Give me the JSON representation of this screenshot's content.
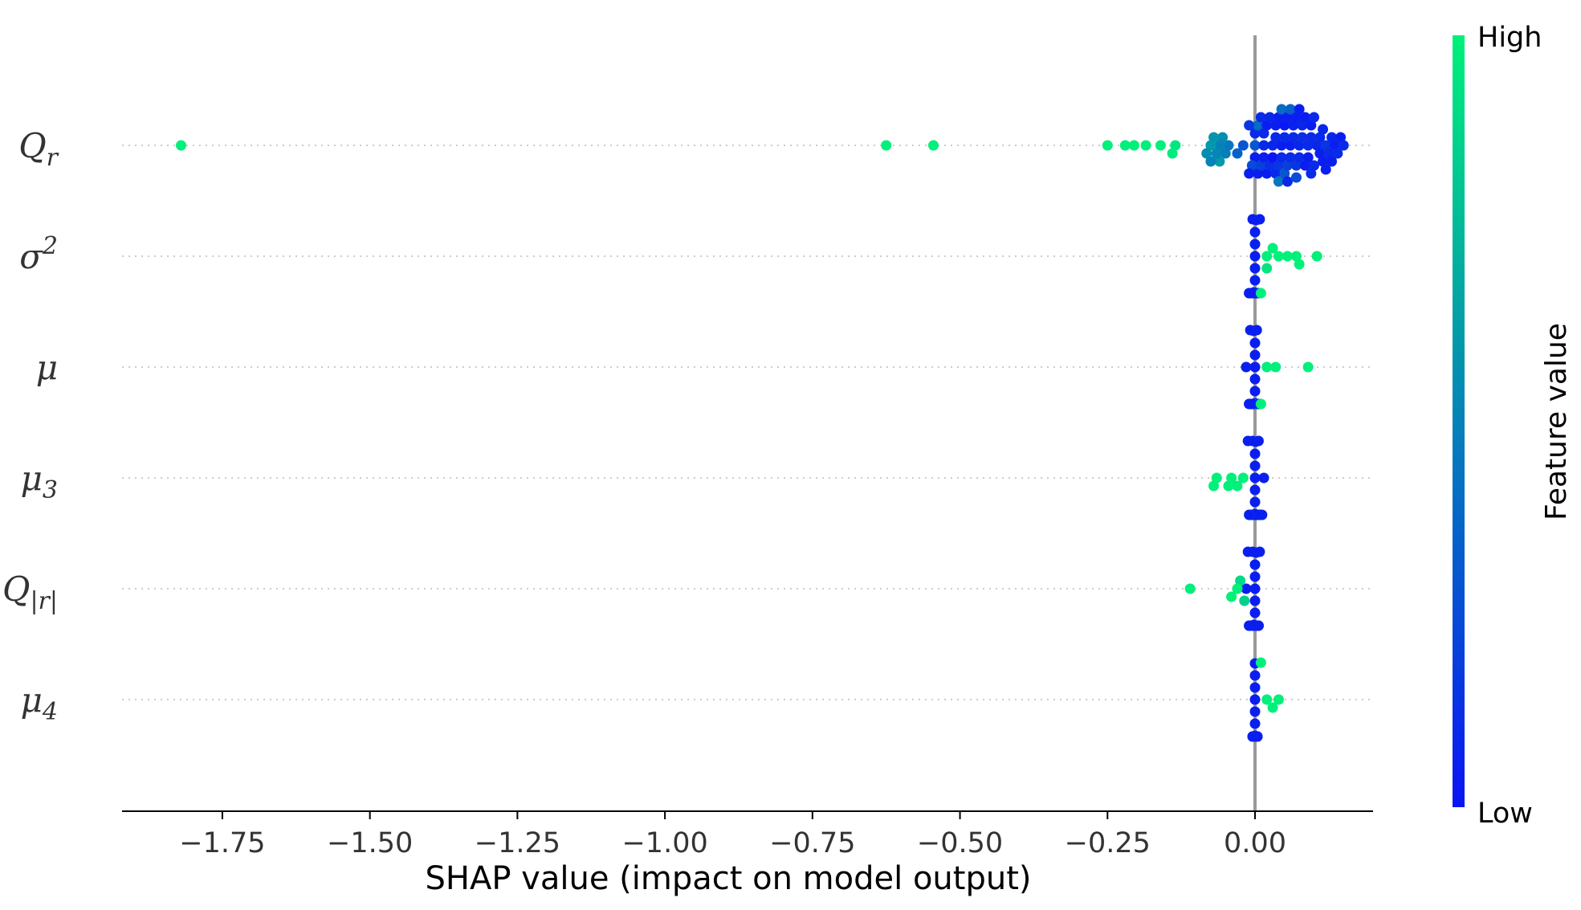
{
  "chart_data": {
    "type": "scatter",
    "subtype": "shap-beeswarm",
    "xlabel": "SHAP value (impact on model output)",
    "xlim": [
      -1.92,
      0.2
    ],
    "xticks": [
      -1.75,
      -1.5,
      -1.25,
      -1.0,
      -0.75,
      -0.5,
      -0.25,
      0.0
    ],
    "xtick_labels": [
      "−1.75",
      "−1.50",
      "−1.25",
      "−1.00",
      "−0.75",
      "−0.50",
      "−0.25",
      "0.00"
    ],
    "zero_line": 0.0,
    "colorbar": {
      "title": "Feature value",
      "high_label": "High",
      "low_label": "Low",
      "low_color": "#0a14f5",
      "high_color": "#00f07a"
    },
    "features": [
      {
        "name": "Q",
        "sub": "r",
        "sup": "",
        "points": [
          [
            -1.82,
            1.0
          ],
          [
            -0.625,
            1.0
          ],
          [
            -0.545,
            1.0
          ],
          [
            -0.25,
            1.0
          ],
          [
            -0.22,
            1.0
          ],
          [
            -0.205,
            1.0
          ],
          [
            -0.185,
            1.0
          ],
          [
            -0.16,
            1.0
          ],
          [
            -0.14,
            0.98
          ],
          [
            -0.135,
            0.96
          ],
          [
            -0.082,
            0.55
          ],
          [
            -0.075,
            0.6
          ],
          [
            -0.07,
            0.58
          ],
          [
            -0.065,
            0.52
          ],
          [
            -0.06,
            0.5
          ],
          [
            -0.055,
            0.55
          ],
          [
            -0.05,
            0.48
          ],
          [
            -0.045,
            0.45
          ],
          [
            -0.075,
            0.5
          ],
          [
            -0.06,
            0.6
          ],
          [
            -0.03,
            0.35
          ],
          [
            -0.02,
            0.3
          ],
          [
            -0.01,
            0.15
          ],
          [
            -0.005,
            0.25
          ],
          [
            0.0,
            0.3
          ],
          [
            0.005,
            0.4
          ],
          [
            0.01,
            0.2
          ],
          [
            0.015,
            0.1
          ],
          [
            0.02,
            0.05
          ],
          [
            0.025,
            0.12
          ],
          [
            0.03,
            0.08
          ],
          [
            0.035,
            0.1
          ],
          [
            0.04,
            0.15
          ],
          [
            0.045,
            0.05
          ],
          [
            0.05,
            0.1
          ],
          [
            0.055,
            0.2
          ],
          [
            0.06,
            0.05
          ],
          [
            0.065,
            0.1
          ],
          [
            0.07,
            0.15
          ],
          [
            0.075,
            0.08
          ],
          [
            0.08,
            0.12
          ],
          [
            0.085,
            0.05
          ],
          [
            0.09,
            0.1
          ],
          [
            0.095,
            0.1
          ],
          [
            0.1,
            0.1
          ],
          [
            0.11,
            0.05
          ],
          [
            0.12,
            0.15
          ],
          [
            0.13,
            0.08
          ],
          [
            0.14,
            0.1
          ],
          [
            0.145,
            0.05
          ],
          [
            0.15,
            0.1
          ],
          [
            0.0,
            0.05
          ],
          [
            0.01,
            0.1
          ],
          [
            0.02,
            0.05
          ],
          [
            0.03,
            0.0
          ],
          [
            0.04,
            0.05
          ],
          [
            0.05,
            0.02
          ],
          [
            0.06,
            0.1
          ],
          [
            0.07,
            0.05
          ],
          [
            0.08,
            0.08
          ],
          [
            0.09,
            0.05
          ],
          [
            0.1,
            0.1
          ],
          [
            0.11,
            0.1
          ],
          [
            0.12,
            0.05
          ],
          [
            0.13,
            0.05
          ],
          [
            0.0,
            0.1
          ],
          [
            0.015,
            0.05
          ],
          [
            0.025,
            0.08
          ],
          [
            0.035,
            0.05
          ],
          [
            0.045,
            0.1
          ],
          [
            0.055,
            0.05
          ],
          [
            0.065,
            0.06
          ],
          [
            0.075,
            0.1
          ],
          [
            0.085,
            0.05
          ],
          [
            0.095,
            0.05
          ],
          [
            0.105,
            0.08
          ],
          [
            0.115,
            0.05
          ],
          [
            0.125,
            0.1
          ],
          [
            0.135,
            0.05
          ],
          [
            0.005,
            0.05
          ],
          [
            0.015,
            0.1
          ],
          [
            0.035,
            0.1
          ],
          [
            0.055,
            0.08
          ],
          [
            0.075,
            0.05
          ],
          [
            0.095,
            0.1
          ],
          [
            0.115,
            0.08
          ],
          [
            0.06,
            0.35
          ],
          [
            0.04,
            0.45
          ],
          [
            0.05,
            0.3
          ],
          [
            0.045,
            0.4
          ],
          [
            0.07,
            0.25
          ],
          [
            -0.01,
            0.05
          ]
        ]
      },
      {
        "name": "σ",
        "sub": "",
        "sup": "2",
        "points": [
          [
            0.01,
            1.0
          ],
          [
            0.02,
            1.0
          ],
          [
            0.03,
            1.0
          ],
          [
            0.04,
            1.0
          ],
          [
            0.055,
            1.0
          ],
          [
            0.07,
            1.0
          ],
          [
            0.075,
            1.0
          ],
          [
            0.105,
            1.0
          ],
          [
            0.02,
            0.95
          ],
          [
            -0.01,
            0.05
          ],
          [
            -0.008,
            0.05
          ],
          [
            -0.006,
            0.05
          ],
          [
            -0.004,
            0.05
          ],
          [
            -0.002,
            0.05
          ],
          [
            0.0,
            0.05
          ],
          [
            0.002,
            0.05
          ],
          [
            0.004,
            0.05
          ],
          [
            0.006,
            0.05
          ],
          [
            0.008,
            0.05
          ],
          [
            -0.01,
            0.05
          ],
          [
            -0.008,
            0.05
          ],
          [
            -0.006,
            0.05
          ],
          [
            -0.004,
            0.05
          ],
          [
            -0.002,
            0.05
          ],
          [
            0.0,
            0.05
          ],
          [
            0.002,
            0.05
          ],
          [
            0.004,
            0.05
          ],
          [
            0.006,
            0.05
          ],
          [
            -0.008,
            0.05
          ],
          [
            -0.004,
            0.05
          ],
          [
            0.0,
            0.05
          ],
          [
            0.004,
            0.05
          ],
          [
            -0.006,
            0.05
          ],
          [
            -0.002,
            0.05
          ],
          [
            0.002,
            0.05
          ],
          [
            -0.004,
            0.05
          ],
          [
            0.0,
            0.05
          ],
          [
            -0.002,
            0.05
          ],
          [
            0.002,
            0.05
          ],
          [
            0.0,
            0.05
          ],
          [
            -0.006,
            0.05
          ],
          [
            0.003,
            0.05
          ]
        ]
      },
      {
        "name": "μ",
        "sub": "",
        "sup": "",
        "points": [
          [
            0.01,
            1.0
          ],
          [
            0.02,
            1.0
          ],
          [
            0.035,
            1.0
          ],
          [
            0.09,
            1.0
          ],
          [
            0.005,
            0.95
          ],
          [
            -0.015,
            0.05
          ],
          [
            -0.01,
            0.05
          ],
          [
            -0.008,
            0.05
          ],
          [
            -0.006,
            0.05
          ],
          [
            -0.004,
            0.05
          ],
          [
            -0.002,
            0.05
          ],
          [
            0.0,
            0.05
          ],
          [
            0.002,
            0.05
          ],
          [
            0.004,
            0.05
          ],
          [
            0.006,
            0.05
          ],
          [
            0.008,
            0.05
          ],
          [
            -0.01,
            0.05
          ],
          [
            -0.008,
            0.05
          ],
          [
            -0.006,
            0.05
          ],
          [
            -0.004,
            0.05
          ],
          [
            -0.002,
            0.05
          ],
          [
            0.0,
            0.05
          ],
          [
            0.002,
            0.05
          ],
          [
            0.004,
            0.05
          ],
          [
            -0.006,
            0.05
          ],
          [
            -0.003,
            0.05
          ],
          [
            0.0,
            0.05
          ],
          [
            0.003,
            0.05
          ],
          [
            -0.004,
            0.05
          ],
          [
            0.0,
            0.05
          ],
          [
            0.002,
            0.05
          ],
          [
            -0.002,
            0.05
          ],
          [
            0.0,
            0.05
          ],
          [
            -0.004,
            0.05
          ],
          [
            0.003,
            0.05
          ],
          [
            0.0,
            0.05
          ]
        ]
      },
      {
        "name": "μ",
        "sub": "3",
        "sup": "",
        "points": [
          [
            -0.07,
            1.0
          ],
          [
            -0.065,
            1.0
          ],
          [
            -0.045,
            1.0
          ],
          [
            -0.04,
            1.0
          ],
          [
            -0.03,
            1.0
          ],
          [
            -0.02,
            1.0
          ],
          [
            -0.01,
            0.95
          ],
          [
            -0.012,
            0.05
          ],
          [
            -0.01,
            0.05
          ],
          [
            -0.008,
            0.05
          ],
          [
            -0.006,
            0.05
          ],
          [
            -0.004,
            0.05
          ],
          [
            -0.002,
            0.05
          ],
          [
            0.0,
            0.05
          ],
          [
            0.002,
            0.05
          ],
          [
            0.004,
            0.05
          ],
          [
            0.006,
            0.05
          ],
          [
            0.008,
            0.05
          ],
          [
            0.01,
            0.05
          ],
          [
            0.012,
            0.05
          ],
          [
            -0.008,
            0.05
          ],
          [
            -0.006,
            0.05
          ],
          [
            -0.004,
            0.05
          ],
          [
            -0.002,
            0.05
          ],
          [
            0.0,
            0.05
          ],
          [
            0.002,
            0.05
          ],
          [
            0.004,
            0.05
          ],
          [
            0.006,
            0.05
          ],
          [
            0.008,
            0.05
          ],
          [
            -0.004,
            0.05
          ],
          [
            0.0,
            0.05
          ],
          [
            0.004,
            0.05
          ],
          [
            -0.002,
            0.05
          ],
          [
            0.002,
            0.05
          ],
          [
            0.0,
            0.05
          ],
          [
            0.003,
            0.05
          ],
          [
            -0.003,
            0.05
          ],
          [
            0.0,
            0.05
          ],
          [
            0.001,
            0.05
          ],
          [
            0.015,
            0.05
          ],
          [
            0.0,
            0.05
          ],
          [
            0.002,
            0.05
          ]
        ]
      },
      {
        "name": "Q",
        "sub": "|r|",
        "sup": "",
        "points": [
          [
            -0.11,
            1.0
          ],
          [
            -0.04,
            1.0
          ],
          [
            -0.03,
            1.0
          ],
          [
            -0.025,
            0.9
          ],
          [
            -0.018,
            0.85
          ],
          [
            -0.015,
            0.05
          ],
          [
            -0.012,
            0.05
          ],
          [
            -0.01,
            0.05
          ],
          [
            -0.008,
            0.05
          ],
          [
            -0.006,
            0.05
          ],
          [
            -0.004,
            0.05
          ],
          [
            -0.002,
            0.05
          ],
          [
            0.0,
            0.05
          ],
          [
            0.002,
            0.05
          ],
          [
            0.004,
            0.05
          ],
          [
            0.006,
            0.05
          ],
          [
            0.008,
            0.05
          ],
          [
            -0.01,
            0.05
          ],
          [
            -0.008,
            0.05
          ],
          [
            -0.006,
            0.05
          ],
          [
            -0.004,
            0.05
          ],
          [
            -0.002,
            0.05
          ],
          [
            0.0,
            0.05
          ],
          [
            0.002,
            0.05
          ],
          [
            0.004,
            0.05
          ],
          [
            -0.006,
            0.05
          ],
          [
            -0.002,
            0.05
          ],
          [
            0.002,
            0.05
          ],
          [
            0.006,
            0.05
          ],
          [
            -0.004,
            0.05
          ],
          [
            0.0,
            0.05
          ],
          [
            0.004,
            0.05
          ],
          [
            -0.002,
            0.05
          ],
          [
            0.002,
            0.05
          ],
          [
            0.0,
            0.05
          ],
          [
            0.0,
            0.05
          ],
          [
            0.003,
            0.05
          ]
        ]
      },
      {
        "name": "μ",
        "sub": "4",
        "sup": "",
        "points": [
          [
            0.01,
            1.0
          ],
          [
            0.02,
            1.0
          ],
          [
            0.03,
            1.0
          ],
          [
            0.04,
            1.0
          ],
          [
            -0.004,
            0.05
          ],
          [
            -0.002,
            0.05
          ],
          [
            0.0,
            0.05
          ],
          [
            0.002,
            0.05
          ],
          [
            0.004,
            0.05
          ],
          [
            -0.004,
            0.05
          ],
          [
            -0.002,
            0.05
          ],
          [
            0.0,
            0.05
          ],
          [
            0.002,
            0.05
          ],
          [
            0.004,
            0.05
          ],
          [
            -0.004,
            0.05
          ],
          [
            -0.002,
            0.05
          ],
          [
            0.0,
            0.05
          ],
          [
            0.002,
            0.05
          ],
          [
            0.004,
            0.05
          ],
          [
            -0.004,
            0.05
          ],
          [
            -0.002,
            0.05
          ],
          [
            0.0,
            0.05
          ],
          [
            0.002,
            0.05
          ],
          [
            0.004,
            0.05
          ],
          [
            -0.003,
            0.05
          ],
          [
            0.0,
            0.05
          ],
          [
            0.003,
            0.05
          ],
          [
            -0.003,
            0.05
          ],
          [
            0.0,
            0.05
          ],
          [
            0.003,
            0.05
          ],
          [
            -0.003,
            0.05
          ],
          [
            0.0,
            0.05
          ],
          [
            0.003,
            0.05
          ],
          [
            0.0,
            0.05
          ],
          [
            0.0,
            0.05
          ],
          [
            0.001,
            0.05
          ]
        ]
      }
    ]
  }
}
